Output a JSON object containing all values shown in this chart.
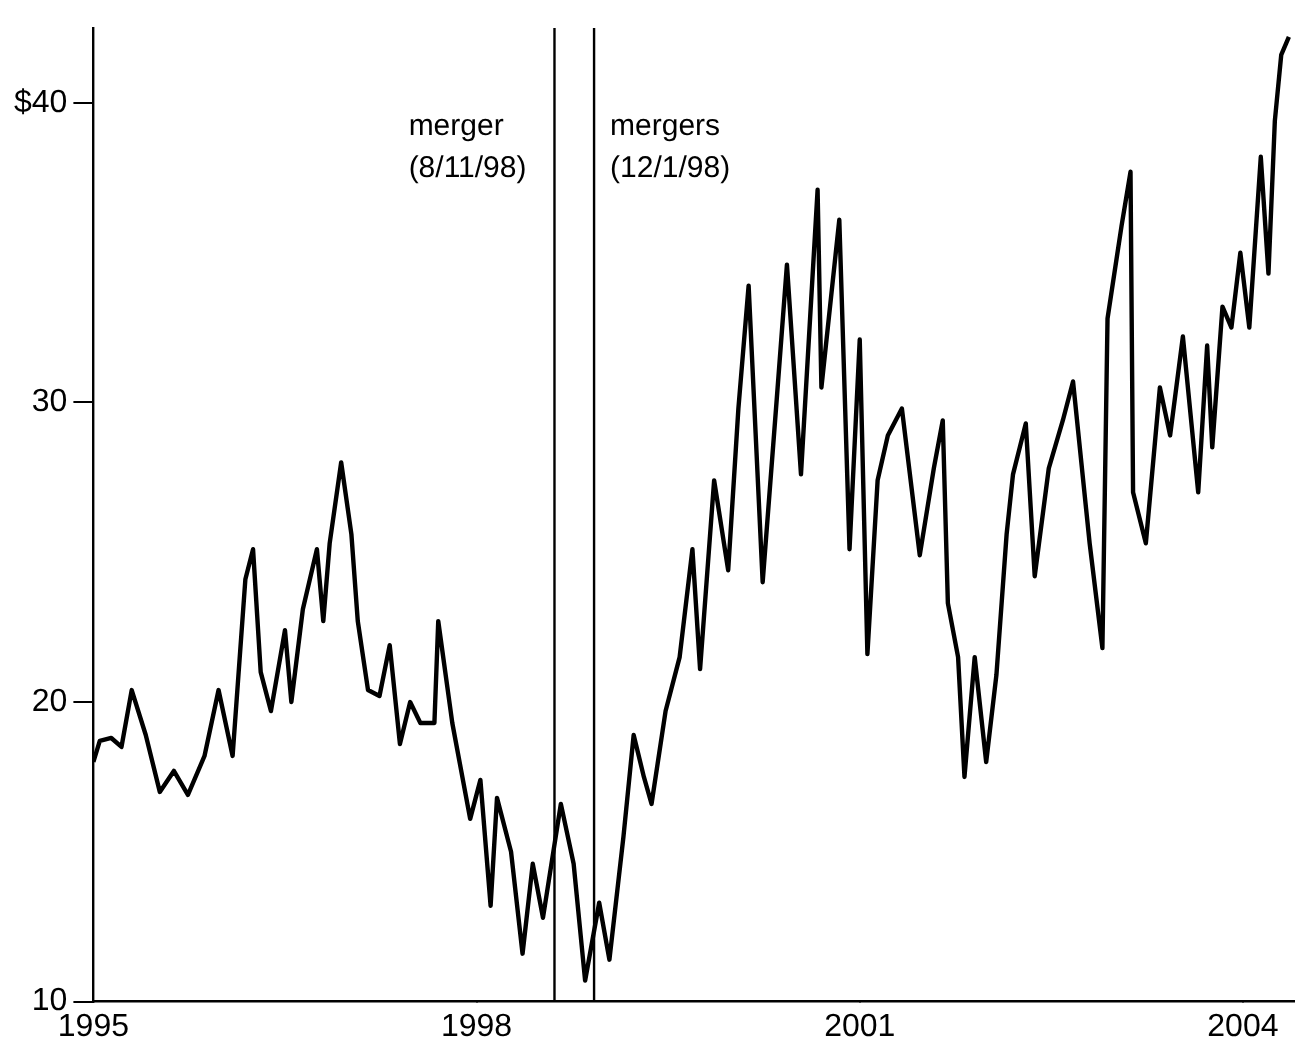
{
  "chart_data": {
    "type": "line",
    "color": "#000000",
    "marker": "none",
    "grid": false,
    "legend": false,
    "xlim": [
      1995,
      2004.4
    ],
    "xticks": [
      1995,
      1998,
      2001,
      2004
    ],
    "ylim": [
      10,
      42.5
    ],
    "yticks": [
      10,
      20,
      30,
      {
        "value": 40,
        "label": "$40"
      }
    ],
    "ref_lines": [
      {
        "axis": "x",
        "value": 1998.61,
        "label": "merger (8/11/98)",
        "color": "#000000"
      },
      {
        "axis": "x",
        "value": 1998.92,
        "label": "mergers (12/1/98)",
        "color": "#000000"
      }
    ],
    "x": [
      1995.0,
      1995.05,
      1995.14,
      1995.22,
      1995.3,
      1995.41,
      1995.52,
      1995.63,
      1995.74,
      1995.87,
      1995.98,
      1996.09,
      1996.19,
      1996.25,
      1996.31,
      1996.39,
      1996.5,
      1996.55,
      1996.64,
      1996.75,
      1996.8,
      1996.85,
      1996.94,
      1997.02,
      1997.07,
      1997.15,
      1997.24,
      1997.32,
      1997.4,
      1997.48,
      1997.56,
      1997.67,
      1997.7,
      1997.81,
      1997.95,
      1998.03,
      1998.11,
      1998.16,
      1998.27,
      1998.36,
      1998.44,
      1998.52,
      1998.66,
      1998.76,
      1998.85,
      1998.96,
      1999.04,
      1999.15,
      1999.23,
      1999.31,
      1999.37,
      1999.48,
      1999.59,
      1999.69,
      1999.75,
      1999.86,
      1999.97,
      2000.05,
      2000.13,
      2000.24,
      2000.35,
      2000.43,
      2000.54,
      2000.67,
      2000.7,
      2000.84,
      2000.92,
      2001.0,
      2001.06,
      2001.14,
      2001.22,
      2001.33,
      2001.47,
      2001.58,
      2001.65,
      2001.69,
      2001.77,
      2001.82,
      2001.9,
      2001.99,
      2002.07,
      2002.15,
      2002.2,
      2002.3,
      2002.37,
      2002.48,
      2002.59,
      2002.67,
      2002.8,
      2002.9,
      2002.94,
      2003.05,
      2003.12,
      2003.14,
      2003.24,
      2003.35,
      2003.43,
      2003.53,
      2003.65,
      2003.72,
      2003.76,
      2003.84,
      2003.91,
      2003.98,
      2004.05,
      2004.14,
      2004.2,
      2004.25,
      2004.3,
      2004.36
    ],
    "values": [
      18.0,
      18.7,
      18.8,
      18.5,
      20.4,
      18.9,
      17.0,
      17.7,
      16.9,
      18.2,
      20.4,
      18.2,
      24.1,
      25.1,
      21.0,
      19.7,
      22.4,
      20.0,
      23.1,
      25.1,
      22.7,
      25.3,
      28.0,
      25.6,
      22.7,
      20.4,
      20.2,
      21.9,
      18.6,
      20.0,
      19.3,
      19.3,
      22.7,
      19.3,
      16.1,
      17.4,
      13.2,
      16.8,
      15.0,
      11.6,
      14.6,
      12.8,
      16.6,
      14.6,
      10.7,
      13.3,
      11.4,
      15.5,
      18.9,
      17.5,
      16.6,
      19.7,
      21.5,
      25.1,
      21.1,
      27.4,
      24.4,
      29.8,
      33.9,
      24.0,
      30.1,
      34.6,
      27.6,
      37.1,
      30.5,
      36.1,
      25.1,
      32.1,
      21.6,
      27.4,
      28.9,
      29.8,
      24.9,
      27.8,
      29.4,
      23.3,
      21.5,
      17.5,
      21.5,
      18.0,
      20.9,
      25.6,
      27.6,
      29.3,
      24.2,
      27.8,
      29.4,
      30.7,
      25.3,
      21.8,
      32.8,
      35.9,
      37.7,
      27.0,
      25.3,
      30.5,
      28.9,
      32.2,
      27.0,
      31.9,
      28.5,
      33.2,
      32.5,
      35.0,
      32.5,
      38.2,
      34.3,
      39.4,
      41.6,
      42.2
    ]
  }
}
